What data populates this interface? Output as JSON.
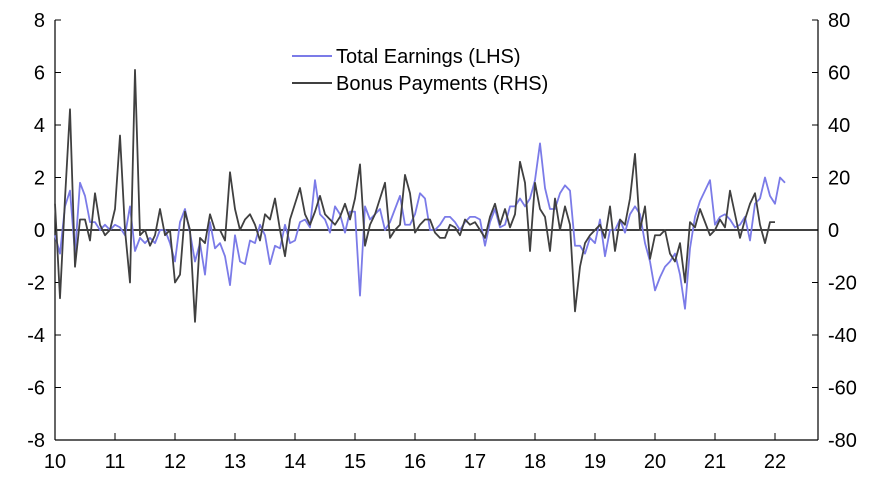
{
  "chart_data": {
    "type": "line",
    "x_tick_labels": [
      "10",
      "11",
      "12",
      "13",
      "14",
      "15",
      "16",
      "17",
      "18",
      "19",
      "20",
      "21",
      "22"
    ],
    "x_start_year": 2010,
    "months_per_point": 1,
    "y_left": {
      "ticks": [
        -8,
        -6,
        -4,
        -2,
        0,
        2,
        4,
        6,
        8
      ],
      "lim": [
        -8,
        8
      ]
    },
    "y_right": {
      "ticks": [
        -80,
        -60,
        -40,
        -20,
        0,
        20,
        40,
        60,
        80
      ],
      "lim": [
        -80,
        80
      ]
    },
    "zero_line": true,
    "grid": false,
    "legend_placement": "top-center",
    "series": [
      {
        "name": "Total Earnings (LHS)",
        "axis": "left",
        "color": "#7b7be8",
        "values": [
          -0.2,
          -0.9,
          0.9,
          1.5,
          -0.9,
          1.8,
          1.3,
          0.3,
          0.3,
          0.0,
          0.2,
          0.0,
          0.2,
          0.1,
          -0.2,
          0.9,
          -0.8,
          -0.3,
          -0.5,
          -0.3,
          -0.5,
          0.0,
          0.0,
          -0.5,
          -1.2,
          0.3,
          0.8,
          -0.1,
          -1.2,
          -0.5,
          -1.7,
          0.3,
          -0.7,
          -0.5,
          -1.0,
          -2.1,
          -0.2,
          -1.2,
          -1.3,
          -0.4,
          -0.5,
          0.2,
          -0.2,
          -1.3,
          -0.6,
          -0.7,
          0.2,
          -0.5,
          -0.4,
          0.3,
          0.4,
          0.1,
          1.9,
          0.6,
          0.4,
          -0.1,
          0.9,
          0.6,
          -0.1,
          0.7,
          0.7,
          -2.5,
          0.9,
          0.4,
          0.6,
          0.8,
          0.0,
          0.3,
          0.8,
          1.3,
          0.2,
          0.2,
          0.6,
          1.4,
          1.2,
          0.0,
          0.0,
          0.2,
          0.5,
          0.5,
          0.3,
          0.0,
          0.3,
          0.5,
          0.5,
          0.4,
          -0.6,
          0.3,
          0.8,
          0.1,
          0.2,
          0.9,
          0.9,
          1.2,
          0.9,
          1.2,
          1.9,
          3.3,
          1.6,
          0.8,
          0.8,
          1.4,
          1.7,
          1.5,
          -0.6,
          -0.6,
          -0.9,
          -0.3,
          -0.5,
          0.4,
          -1.0,
          0.0,
          0.0,
          0.4,
          -0.1,
          0.6,
          0.9,
          0.6,
          -0.5,
          -1.2,
          -2.3,
          -1.8,
          -1.4,
          -1.2,
          -0.9,
          -1.7,
          -3.0,
          -0.7,
          0.5,
          1.1,
          1.5,
          1.9,
          0.2,
          0.5,
          0.6,
          0.4,
          0.1,
          0.2,
          0.5,
          -0.4,
          1.0,
          1.2,
          2.0,
          1.3,
          1.0,
          2.0,
          1.8
        ]
      },
      {
        "name": "Bonus Payments (RHS)",
        "axis": "right",
        "color": "#404040",
        "values": [
          10,
          -26,
          12,
          46,
          -14,
          4,
          4,
          -4,
          14,
          2,
          -2,
          0,
          8,
          36,
          0,
          -20,
          61,
          -2,
          0,
          -6,
          -2,
          8,
          -2,
          0,
          -20,
          -17,
          7,
          0,
          -35,
          -3,
          -5,
          6,
          0,
          0,
          -4,
          22,
          8,
          0,
          4,
          6,
          2,
          -4,
          6,
          4,
          12,
          0,
          -10,
          4,
          10,
          16,
          6,
          2,
          7,
          13,
          6,
          4,
          2,
          5,
          10,
          4,
          12,
          25,
          -6,
          2,
          6,
          12,
          18,
          -3,
          0,
          2,
          21,
          14,
          -1,
          2,
          4,
          4,
          -1,
          -3,
          -3,
          2,
          1,
          -2,
          4,
          2,
          3,
          0,
          -3,
          5,
          10,
          2,
          8,
          1,
          6,
          26,
          18,
          -8,
          18,
          8,
          5,
          -8,
          12,
          0,
          9,
          2,
          -31,
          -14,
          -5,
          -2,
          0,
          2,
          -3,
          9,
          -8,
          4,
          2,
          12,
          29,
          0,
          9,
          -11,
          -2,
          -2,
          0,
          -9,
          -12,
          -5,
          -20,
          3,
          1,
          8,
          3,
          -2,
          0,
          4,
          1,
          15,
          6,
          -3,
          4,
          10,
          14,
          2,
          -5,
          3,
          3
        ]
      }
    ]
  }
}
